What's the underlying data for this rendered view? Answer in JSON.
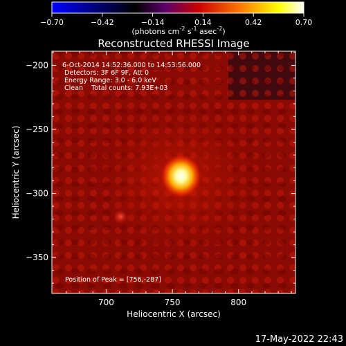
{
  "colorbar": {
    "ticks": [
      "-0.70",
      "-0.42",
      "-0.14",
      "0.14",
      "0.42",
      "0.70"
    ],
    "unit_main": "(photons cm",
    "unit_exp1": "-2",
    "unit_mid1": " s",
    "unit_exp2": "-1",
    "unit_mid2": " asec",
    "unit_exp3": "-2",
    "unit_close": ")",
    "colors": [
      "#0000ff",
      "#000000",
      "#5a006a",
      "#c80000",
      "#ff7a00",
      "#ffff00",
      "#ffffff"
    ]
  },
  "chart_data": {
    "type": "heatmap",
    "title": "Reconstructed RHESSI Image",
    "xlabel": "Heliocentric X (arcsec)",
    "ylabel": "Heliocentric Y (arcsec)",
    "xlim": [
      659,
      843
    ],
    "ylim": [
      -378,
      -189
    ],
    "xticks": [
      700,
      750,
      800
    ],
    "yticks": [
      -200,
      -250,
      -300,
      -350
    ],
    "xtick_labels": [
      "700",
      "750",
      "800"
    ],
    "ytick_labels": [
      "−200",
      "−250",
      "−300",
      "−350"
    ],
    "peak": {
      "x": 756,
      "y": -287,
      "value": 0.7
    },
    "secondary_source": {
      "x": 711,
      "y": -318,
      "value": 0.2
    },
    "colorbar_range": [
      -0.7,
      0.7
    ],
    "annotations": {
      "time": "6-Oct-2014 14:52:36.000 to 14:53:56.000",
      "detectors": "Detectors: 3F 6F 9F, Att 0",
      "energy": "Energy Range: 3.0 - 6.0 keV",
      "clean": "Clean    Total counts: 7.93E+03",
      "peak_label": "Position of Peak = [756,-287]"
    }
  },
  "footer": {
    "timestamp": "17-May-2022 22:43"
  }
}
